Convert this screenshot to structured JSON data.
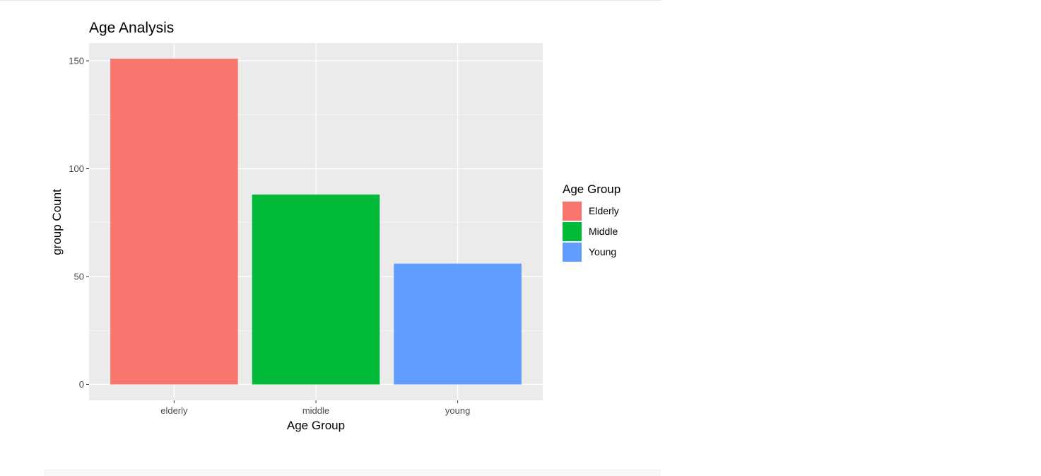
{
  "chart_data": {
    "type": "bar",
    "title": "Age Analysis",
    "xlabel": "Age Group",
    "ylabel": "group Count",
    "categories": [
      "elderly",
      "middle",
      "young"
    ],
    "values": [
      151,
      88,
      56
    ],
    "ylim": [
      0,
      158
    ],
    "yticks": [
      0,
      50,
      100,
      150
    ],
    "grid": true,
    "legend": {
      "title": "Age Group",
      "position": "right",
      "entries": [
        "Elderly",
        "Middle",
        "Young"
      ]
    },
    "colors": [
      "#F8766D",
      "#00BA38",
      "#619CFF"
    ],
    "panel_background": "#EBEBEB",
    "grid_color": "#FFFFFF"
  }
}
